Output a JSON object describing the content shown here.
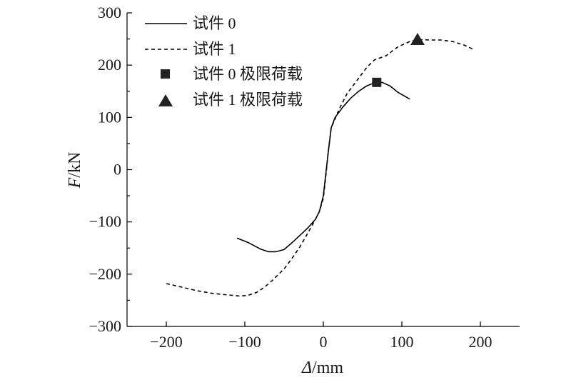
{
  "chart_data": {
    "type": "line",
    "title": "",
    "xlabel": {
      "symbol": "Δ",
      "unit": "/mm"
    },
    "ylabel": {
      "symbol": "F",
      "unit": "/kN"
    },
    "xlim": [
      -250,
      250
    ],
    "ylim": [
      -300,
      300
    ],
    "xticks": [
      -200,
      -100,
      0,
      100,
      200
    ],
    "yticks": [
      -300,
      -200,
      -100,
      0,
      100,
      200,
      300
    ],
    "xtick_labels": [
      "−200",
      "−100",
      "0",
      "100",
      "200"
    ],
    "ytick_labels": [
      "−300",
      "−200",
      "−100",
      "0",
      "100",
      "200",
      "300"
    ],
    "grid": false,
    "legend_position": "top-left",
    "series": [
      {
        "name": "试件 0",
        "style": "solid",
        "color": "#000000",
        "points": [
          [
            -110,
            -131
          ],
          [
            -95,
            -140
          ],
          [
            -80,
            -152
          ],
          [
            -70,
            -157
          ],
          [
            -60,
            -157
          ],
          [
            -50,
            -153
          ],
          [
            -40,
            -140
          ],
          [
            -30,
            -126
          ],
          [
            -20,
            -112
          ],
          [
            -10,
            -95
          ],
          [
            -5,
            -80
          ],
          [
            0,
            -50
          ],
          [
            3,
            -10
          ],
          [
            6,
            30
          ],
          [
            10,
            80
          ],
          [
            15,
            100
          ],
          [
            25,
            120
          ],
          [
            35,
            137
          ],
          [
            45,
            150
          ],
          [
            55,
            160
          ],
          [
            65,
            166
          ],
          [
            75,
            167
          ],
          [
            85,
            160
          ],
          [
            95,
            148
          ],
          [
            110,
            135
          ]
        ]
      },
      {
        "name": "试件 1",
        "style": "dashed",
        "color": "#000000",
        "points": [
          [
            -200,
            -218
          ],
          [
            -180,
            -225
          ],
          [
            -160,
            -232
          ],
          [
            -140,
            -237
          ],
          [
            -120,
            -240
          ],
          [
            -105,
            -242
          ],
          [
            -95,
            -240
          ],
          [
            -85,
            -235
          ],
          [
            -75,
            -225
          ],
          [
            -65,
            -212
          ],
          [
            -50,
            -190
          ],
          [
            -40,
            -170
          ],
          [
            -30,
            -148
          ],
          [
            -20,
            -122
          ],
          [
            -10,
            -95
          ],
          [
            -5,
            -80
          ],
          [
            0,
            -55
          ],
          [
            3,
            -15
          ],
          [
            6,
            30
          ],
          [
            10,
            80
          ],
          [
            20,
            115
          ],
          [
            30,
            145
          ],
          [
            45,
            175
          ],
          [
            55,
            195
          ],
          [
            65,
            210
          ],
          [
            80,
            218
          ],
          [
            95,
            235
          ],
          [
            110,
            245
          ],
          [
            120,
            249
          ],
          [
            135,
            248
          ],
          [
            150,
            248
          ],
          [
            165,
            245
          ],
          [
            180,
            238
          ],
          [
            190,
            231
          ]
        ]
      }
    ],
    "markers": [
      {
        "name": "试件 0 极限荷载",
        "shape": "square",
        "x": 68,
        "y": 167,
        "color": "#222222"
      },
      {
        "name": "试件 1 极限荷载",
        "shape": "triangle",
        "x": 120,
        "y": 248,
        "color": "#222222"
      }
    ]
  }
}
